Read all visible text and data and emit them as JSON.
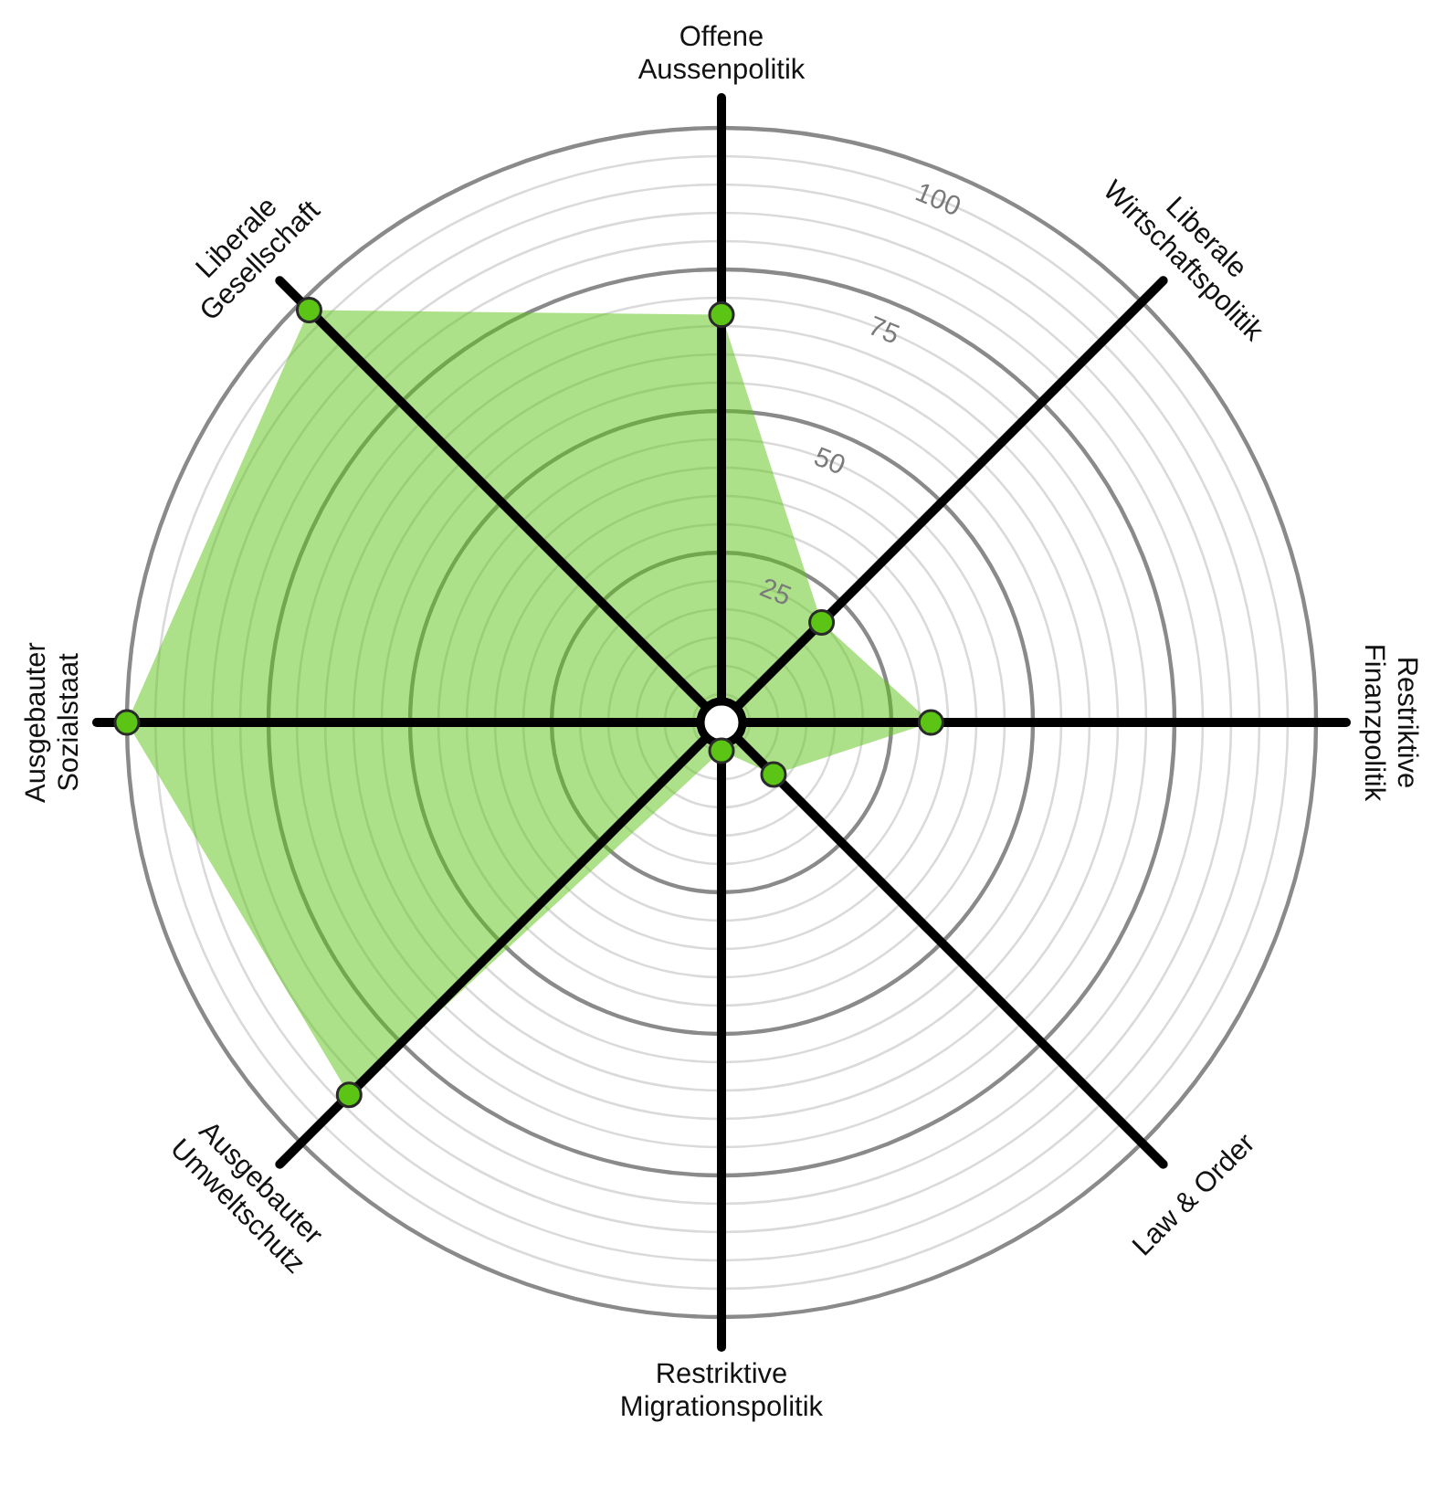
{
  "chart_data": {
    "type": "radar",
    "categories": [
      "Offene\nAussenpolitik",
      "Liberale\nWirtschaftspolitik",
      "Restriktive\nFinanzpolitik",
      "Law & Order",
      "Restriktive\nMigrationspolitik",
      "Ausgebauter\nUmweltschutz",
      "Ausgebauter\nSozialstaat",
      "Liberale\nGesellschaft"
    ],
    "series": [
      {
        "color": "#5cc414",
        "values": [
          67,
          20,
          32,
          8,
          0,
          88,
          100,
          98
        ]
      }
    ],
    "ylim": [
      -5,
      100
    ],
    "yticks": [
      25,
      50,
      75,
      100
    ],
    "grid": true,
    "marker": "circle"
  }
}
